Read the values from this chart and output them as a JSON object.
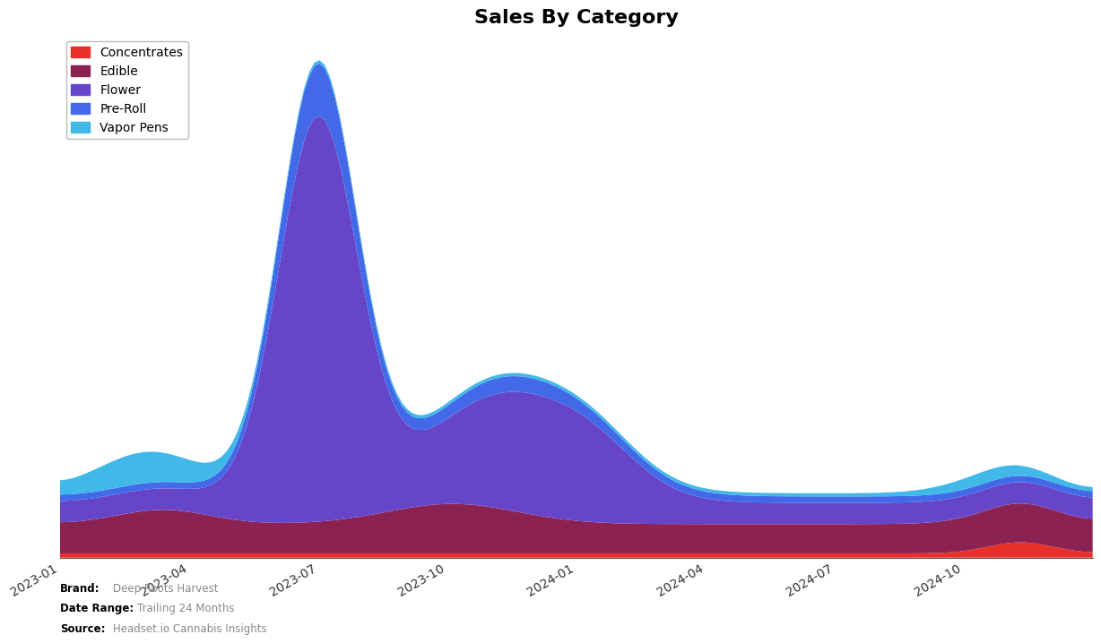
{
  "title": "Sales By Category",
  "title_fontsize": 16,
  "title_fontweight": "bold",
  "categories": [
    "Concentrates",
    "Edible",
    "Flower",
    "Pre-Roll",
    "Vapor Pens"
  ],
  "colors": [
    "#e8302a",
    "#8B2252",
    "#6645c8",
    "#4169e8",
    "#40b8e8"
  ],
  "x_labels": [
    "2023-01",
    "2023-04",
    "2023-07",
    "2023-10",
    "2024-01",
    "2024-04",
    "2024-07",
    "2024-10"
  ],
  "n_points": 200,
  "brand": "Deep Roots Harvest",
  "date_range": "Trailing 24 Months",
  "source": "Headset.io Cannabis Insights",
  "background_color": "#ffffff",
  "footnote_color": "#888888"
}
